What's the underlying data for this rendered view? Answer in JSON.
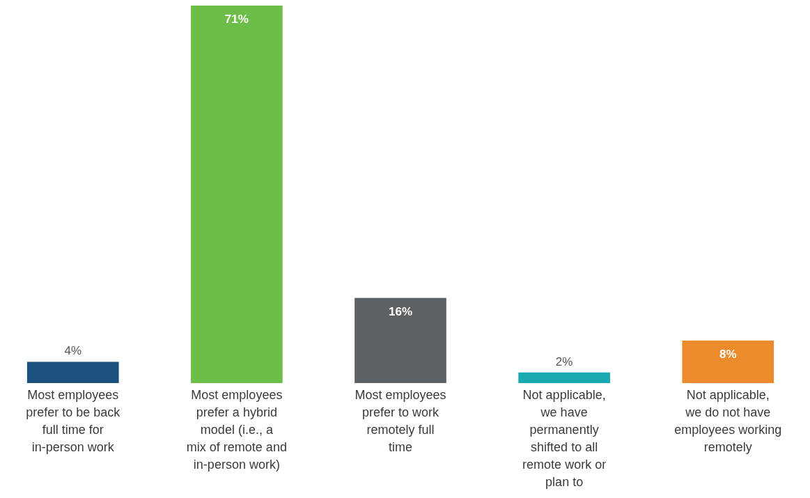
{
  "chart_data": {
    "type": "bar",
    "categories": [
      "Most employees prefer to be back full time for in-person work",
      "Most employees prefer a hybrid model (i.e., a mix of remote and in-person work)",
      "Most employees prefer to work remotely full time",
      "Not applicable, we have permanently shifted to all remote work or plan to",
      "Not applicable, we do not have employees working remotely"
    ],
    "values": [
      4,
      71,
      16,
      2,
      8
    ],
    "colors": [
      "#1b4f7c",
      "#6dbe48",
      "#5e6164",
      "#1aa9b0",
      "#ec8b2c"
    ],
    "value_labels": [
      "4%",
      "71%",
      "16%",
      "2%",
      "8%"
    ]
  }
}
